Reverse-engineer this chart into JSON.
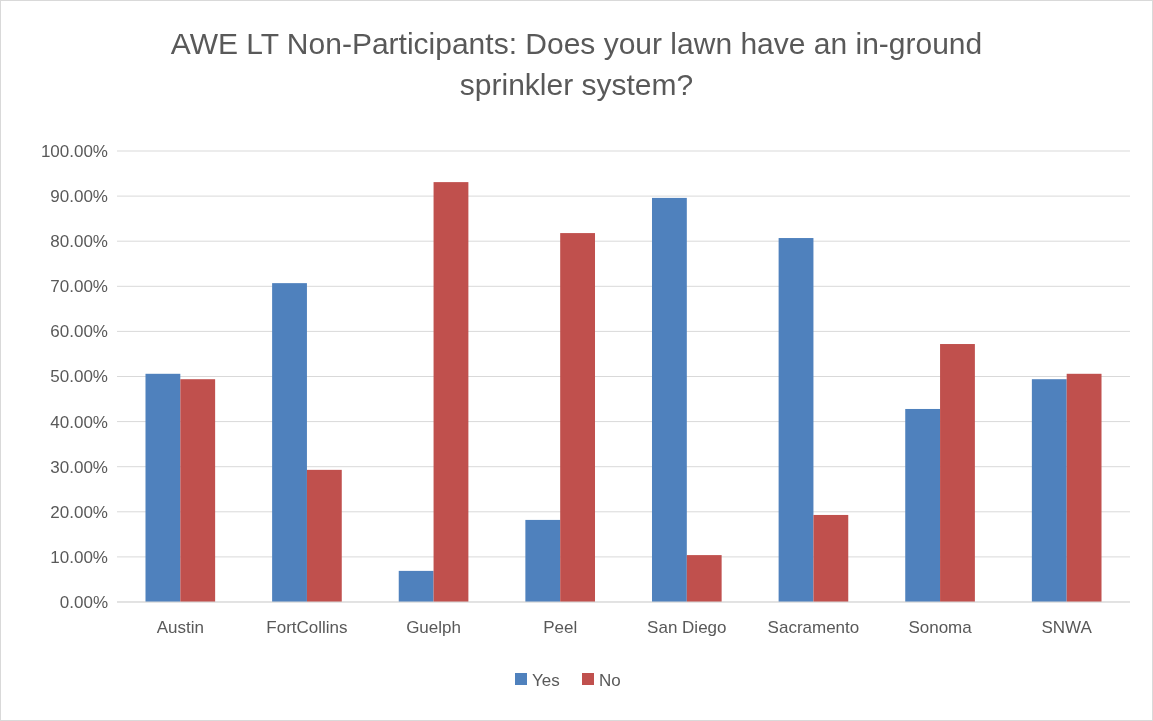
{
  "chart_data": {
    "type": "bar",
    "title": "AWE LT Non-Participants: Does your lawn have an in-ground sprinkler system?",
    "categories": [
      "Austin",
      "FortCollins",
      "Guelph",
      "Peel",
      "San Diego",
      "Sacramento",
      "Sonoma",
      "SNWA"
    ],
    "series": [
      {
        "name": "Yes",
        "color": "#4f81bd",
        "values": [
          50.6,
          70.7,
          6.9,
          18.2,
          89.6,
          80.7,
          42.8,
          49.4
        ]
      },
      {
        "name": "No",
        "color": "#c0504d",
        "values": [
          49.4,
          29.3,
          93.1,
          81.8,
          10.4,
          19.3,
          57.2,
          50.6
        ]
      }
    ],
    "ylim": [
      0,
      100
    ],
    "yticks": [
      {
        "value": 0,
        "label": "0.00%"
      },
      {
        "value": 10,
        "label": "10.00%"
      },
      {
        "value": 20,
        "label": "20.00%"
      },
      {
        "value": 30,
        "label": "30.00%"
      },
      {
        "value": 40,
        "label": "40.00%"
      },
      {
        "value": 50,
        "label": "50.00%"
      },
      {
        "value": 60,
        "label": "60.00%"
      },
      {
        "value": 70,
        "label": "70.00%"
      },
      {
        "value": 80,
        "label": "80.00%"
      },
      {
        "value": 90,
        "label": "90.00%"
      },
      {
        "value": 100,
        "label": "100.00%"
      }
    ],
    "grid": "y",
    "legend": "bottom"
  }
}
